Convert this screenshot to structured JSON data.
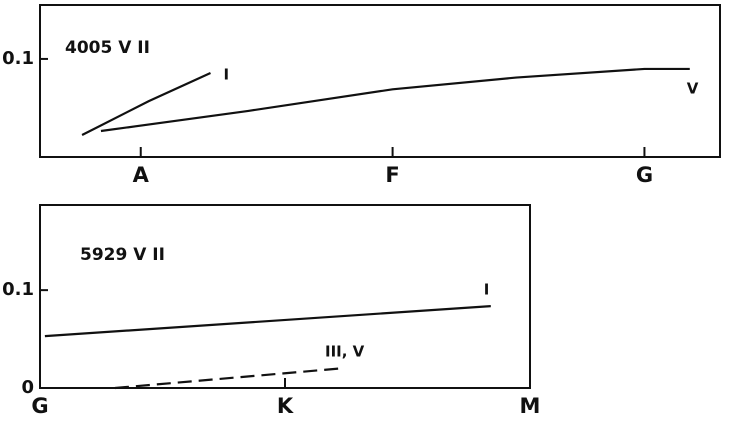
{
  "chart_data": [
    {
      "type": "line",
      "annotation": "4005 V II",
      "xlim": [
        -4,
        23
      ],
      "xticks": [
        {
          "value": 0,
          "label": "A"
        },
        {
          "value": 10,
          "label": "F"
        },
        {
          "value": 20,
          "label": "G"
        }
      ],
      "ylim": [
        0,
        0.155
      ],
      "yticks": [
        0.1
      ],
      "series": [
        {
          "name": "I",
          "color": "#111111",
          "dashed": false,
          "x": [
            -2.33,
            0.32,
            2.77
          ],
          "values": [
            0.0224,
            0.057,
            0.0857
          ]
        },
        {
          "name": "V",
          "color": "#111111",
          "dashed": false,
          "x": [
            -1.58,
            4.27,
            10,
            14.9,
            20,
            21.8
          ],
          "values": [
            0.0265,
            0.047,
            0.069,
            0.081,
            0.0898,
            0.0898
          ]
        }
      ]
    },
    {
      "type": "line",
      "annotation": "5929 V II",
      "xlim": [
        0,
        20
      ],
      "xticks": [
        {
          "value": 0,
          "label": "G"
        },
        {
          "value": 10,
          "label": "K"
        },
        {
          "value": 20,
          "label": "M"
        }
      ],
      "ylim": [
        0,
        0.187
      ],
      "yticks": [
        0,
        0.1
      ],
      "series": [
        {
          "name": "I",
          "color": "#111111",
          "dashed": false,
          "x": [
            0.2,
            18.4
          ],
          "values": [
            0.053,
            0.0837
          ]
        },
        {
          "name": "III, V",
          "color": "#111111",
          "dashed": true,
          "x": [
            3.06,
            12.45
          ],
          "values": [
            0.0,
            0.0204
          ]
        }
      ]
    }
  ]
}
